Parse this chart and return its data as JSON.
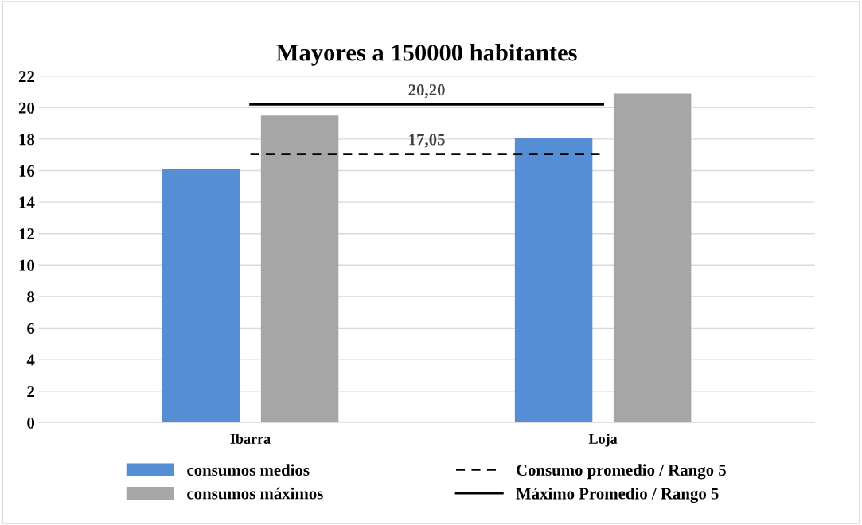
{
  "chart_data": {
    "type": "bar",
    "title": "Mayores a 150000 habitantes",
    "categories": [
      "Ibarra",
      "Loja"
    ],
    "series": [
      {
        "name": "consumos medios",
        "color": "#558ed5",
        "values": [
          16.1,
          18.05
        ]
      },
      {
        "name": "consumos máximos",
        "color": "#a6a6a6",
        "values": [
          19.5,
          20.9
        ]
      },
      {
        "name": "Consumo promedio / Rango 5",
        "type": "line",
        "line_style": "dashed",
        "color": "#000000",
        "values": [
          17.05,
          17.05
        ]
      },
      {
        "name": "Máximo Promedio / Rango 5",
        "type": "line",
        "line_style": "solid",
        "color": "#000000",
        "values": [
          20.2,
          20.2
        ]
      }
    ],
    "annotations": [
      {
        "text": "17,05",
        "y": 17.05
      },
      {
        "text": "20,20",
        "y": 20.2
      }
    ],
    "ylim": [
      0,
      22
    ],
    "yticks": [
      0,
      2,
      4,
      6,
      8,
      10,
      12,
      14,
      16,
      18,
      20,
      22
    ],
    "grid": "y",
    "legend": "bottom"
  }
}
